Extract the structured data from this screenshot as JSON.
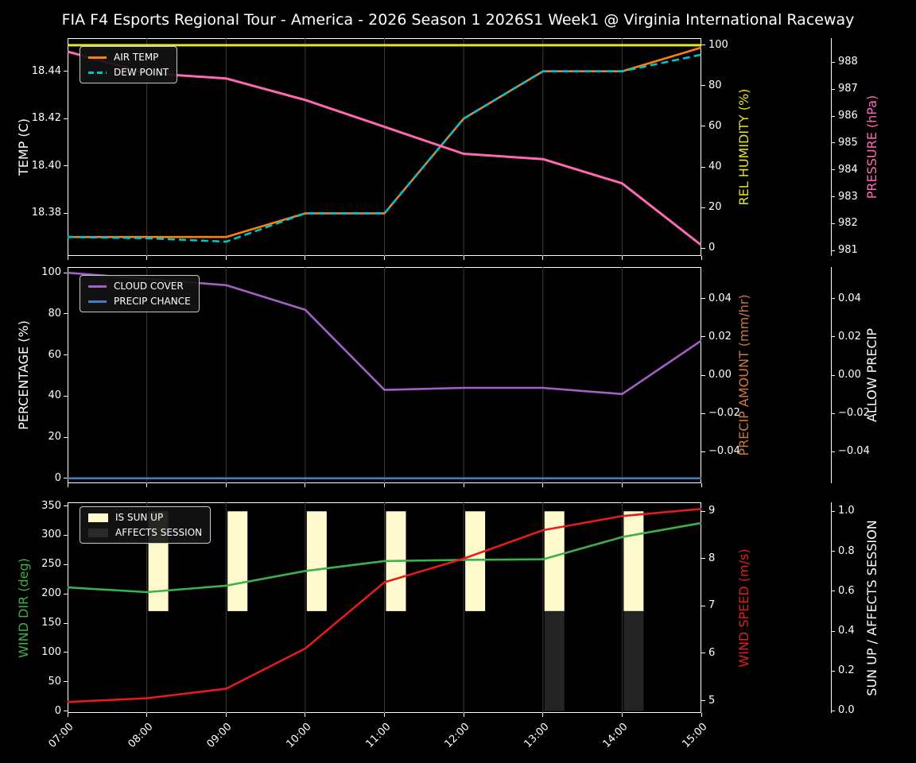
{
  "title": "FIA F4 Esports Regional Tour - America - 2026 Season 1 2026S1 Week1 @ Virginia International Raceway",
  "figure": {
    "background": "#000000",
    "text_color": "#ffffff",
    "grid_color": "#3a3a3a",
    "spine_color": "#ffffff",
    "legend_bg": "#141414",
    "legend_border": "#c8c8c8"
  },
  "chart_data": {
    "type": "line",
    "x_labels": [
      "07:00",
      "08:00",
      "09:00",
      "10:00",
      "11:00",
      "12:00",
      "13:00",
      "14:00",
      "15:00"
    ],
    "panels": [
      {
        "id": "temperature",
        "left_axis": {
          "label": "TEMP (C)",
          "color": "#ffffff",
          "range": [
            18.362,
            18.454
          ],
          "tick_values": [
            18.38,
            18.4,
            18.42,
            18.44
          ],
          "tick_labels": [
            "18.38",
            "18.40",
            "18.42",
            "18.44"
          ]
        },
        "right_axes": [
          {
            "label": "REL HUMIDITY (%)",
            "color": "#e6e622",
            "range": [
              -3.9,
              103.5
            ],
            "tick_values": [
              0,
              20,
              40,
              60,
              80,
              100
            ],
            "tick_labels": [
              "0",
              "20",
              "40",
              "60",
              "80",
              "100"
            ]
          },
          {
            "label": "PRESSURE (hPa)",
            "color": "#ff69b4",
            "range": [
              980.8,
              988.9
            ],
            "tick_values": [
              981,
              982,
              983,
              984,
              985,
              986,
              987,
              988
            ],
            "tick_labels": [
              "981",
              "982",
              "983",
              "984",
              "985",
              "986",
              "987",
              "988"
            ]
          }
        ],
        "series": [
          {
            "name": "AIR TEMP",
            "axis": "left",
            "color": "#ff7f0e",
            "dash": false,
            "width": 2.6,
            "visible": true,
            "values": [
              18.37,
              18.37,
              18.37,
              18.38,
              18.38,
              18.42,
              18.44,
              18.44,
              18.45
            ]
          },
          {
            "name": "DEW POINT",
            "axis": "left",
            "color": "#00c3cc",
            "dash": true,
            "width": 2.6,
            "visible": true,
            "values": [
              18.37,
              18.3695,
              18.368,
              18.38,
              18.38,
              18.42,
              18.44,
              18.44,
              18.447
            ]
          },
          {
            "name": "REL HUMIDITY",
            "axis": "r1",
            "color": "#e6e622",
            "dash": false,
            "width": 3,
            "visible": true,
            "values": [
              100,
              100,
              100,
              100,
              100,
              100,
              100,
              100,
              100
            ]
          },
          {
            "name": "PRESSURE",
            "axis": "r2",
            "color": "#ff69b4",
            "dash": false,
            "width": 3,
            "visible": true,
            "values": [
              988.4,
              987.6,
              987.4,
              986.6,
              985.6,
              984.6,
              984.4,
              983.5,
              981.2
            ]
          }
        ],
        "bars": [],
        "legend": [
          "AIR TEMP",
          "DEW POINT"
        ]
      },
      {
        "id": "precipitation",
        "left_axis": {
          "label": "PERCENTAGE (%)",
          "color": "#ffffff",
          "range": [
            -2.4,
            102.8
          ],
          "tick_values": [
            0,
            20,
            40,
            60,
            80,
            100
          ],
          "tick_labels": [
            "0",
            "20",
            "40",
            "60",
            "80",
            "100"
          ]
        },
        "right_axes": [
          {
            "label": "PRECIP AMOUNT (mm/hr)",
            "color": "#cc7a3f",
            "range": [
              -0.0565,
              0.0565
            ],
            "tick_values": [
              0.04,
              0.02,
              0,
              -0.02,
              -0.04
            ],
            "tick_labels": [
              "0.04",
              "0.02",
              "0.00",
              "−0.02",
              "−0.04"
            ]
          },
          {
            "label": "ALLOW PRECIP",
            "color": "#ffffff",
            "range": [
              -0.0565,
              0.0565
            ],
            "tick_values": [
              0.04,
              0.02,
              0,
              -0.02,
              -0.04
            ],
            "tick_labels": [
              "0.04",
              "0.02",
              "0.00",
              "−0.02",
              "−0.04"
            ]
          }
        ],
        "series": [
          {
            "name": "CLOUD COVER",
            "axis": "left",
            "color": "#a55fc8",
            "dash": false,
            "width": 2.6,
            "visible": true,
            "values": [
              100,
              97,
              94,
              82,
              43,
              44,
              44,
              41,
              67
            ]
          },
          {
            "name": "PRECIP CHANCE",
            "axis": "left",
            "color": "#3f7fc1",
            "dash": false,
            "width": 2.6,
            "visible": true,
            "values": [
              0,
              0,
              0,
              0,
              0,
              0,
              0,
              0,
              0
            ]
          },
          {
            "name": "PRECIP AMOUNT",
            "axis": "r1",
            "color": "#cc7a3f",
            "dash": false,
            "width": 2.6,
            "visible": false,
            "values": [
              0,
              0,
              0,
              0,
              0,
              0,
              0,
              0,
              0
            ]
          },
          {
            "name": "ALLOW PRECIP",
            "axis": "r2",
            "color": "#ffffff",
            "dash": false,
            "width": 2.6,
            "visible": false,
            "values": [
              0,
              0,
              0,
              0,
              0,
              0,
              0,
              0,
              0
            ]
          }
        ],
        "bars": [],
        "legend": [
          "CLOUD COVER",
          "PRECIP CHANCE"
        ]
      },
      {
        "id": "wind",
        "left_axis": {
          "label": "WIND DIR (deg)",
          "color": "#3cb04c",
          "range": [
            -3.1,
            356.2
          ],
          "tick_values": [
            0,
            50,
            100,
            150,
            200,
            250,
            300,
            350
          ],
          "tick_labels": [
            "0",
            "50",
            "100",
            "150",
            "200",
            "250",
            "300",
            "350"
          ]
        },
        "right_axes": [
          {
            "label": "WIND SPEED (m/s)",
            "color": "#e51c1c",
            "range": [
              4.74,
              9.19
            ],
            "tick_values": [
              5,
              6,
              7,
              8,
              9
            ],
            "tick_labels": [
              "5",
              "6",
              "7",
              "8",
              "9"
            ]
          },
          {
            "label": "SUN UP / AFFECTS SESSION",
            "color": "#ffffff",
            "range": [
              -0.01,
              1.045
            ],
            "tick_values": [
              0.0,
              0.2,
              0.4,
              0.6,
              0.8,
              1.0
            ],
            "tick_labels": [
              "0.0",
              "0.2",
              "0.4",
              "0.6",
              "0.8",
              "1.0"
            ]
          }
        ],
        "series": [
          {
            "name": "WIND DIR",
            "axis": "left",
            "color": "#3cb04c",
            "dash": false,
            "width": 2.6,
            "visible": true,
            "values": [
              211,
              203,
              214,
              239,
              256,
              258,
              259,
              297,
              321
            ]
          },
          {
            "name": "WIND SPEED",
            "axis": "r1",
            "color": "#e51c1c",
            "dash": false,
            "width": 2.6,
            "visible": true,
            "values": [
              4.97,
              5.05,
              5.25,
              6.1,
              7.5,
              8.0,
              8.6,
              8.9,
              9.05
            ]
          }
        ],
        "bars": [
          {
            "name": "IS SUN UP",
            "axis": "r2",
            "color": "#fffacd",
            "from": 0.5,
            "to": 1.0,
            "flags": [
              0,
              1,
              1,
              1,
              1,
              1,
              1,
              1,
              0
            ]
          },
          {
            "name": "AFFECTS SESSION",
            "axis": "r2",
            "color": "#242424",
            "from": 0.0,
            "to": 0.5,
            "flags": [
              0,
              0,
              0,
              0,
              0,
              0,
              1,
              1,
              0
            ]
          }
        ],
        "legend": [
          "IS SUN UP",
          "AFFECTS SESSION"
        ],
        "show_x_labels": true
      }
    ]
  }
}
